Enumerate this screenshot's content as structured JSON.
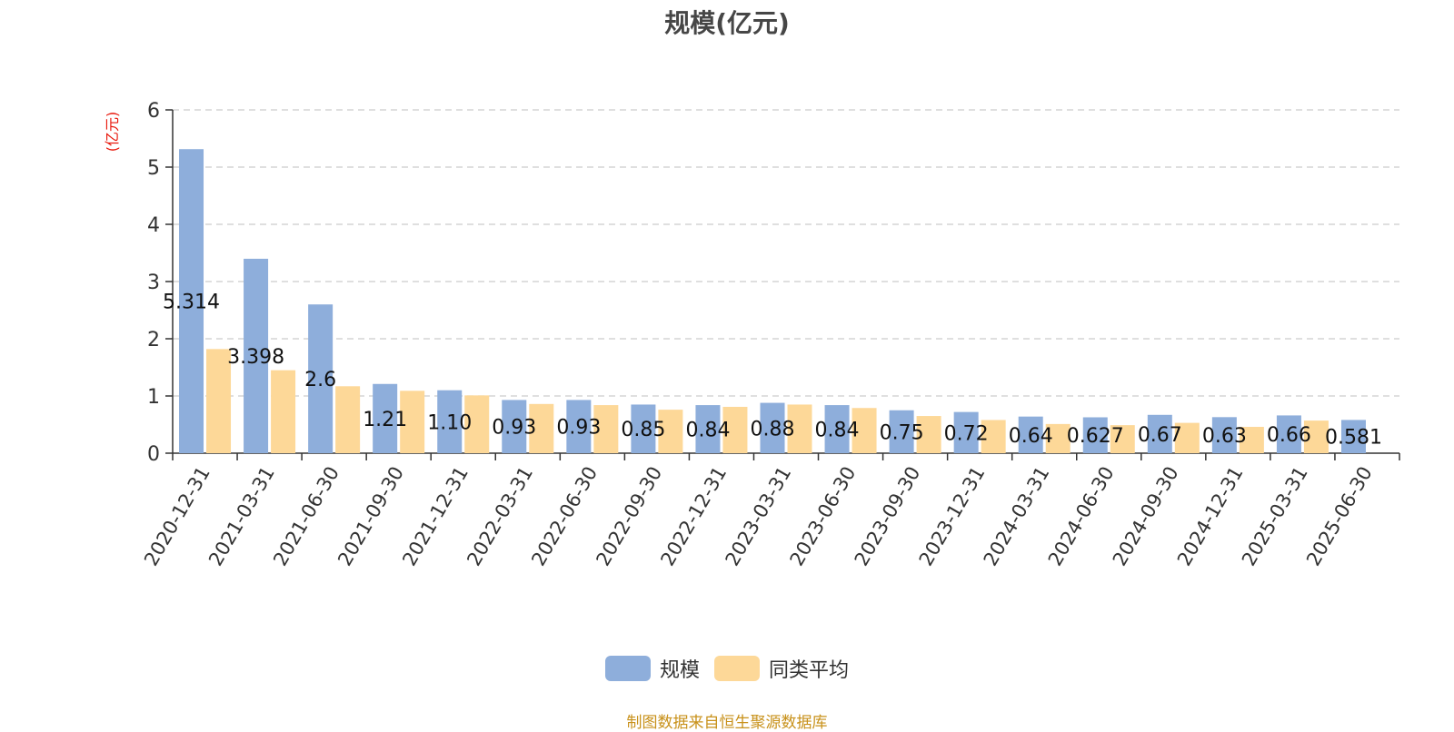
{
  "chart_data": {
    "type": "bar",
    "title": "规模(亿元)",
    "ylabel": "(亿元)",
    "xlabel": "",
    "ylim": [
      0,
      6
    ],
    "yticks": [
      0,
      1,
      2,
      3,
      4,
      5,
      6
    ],
    "grid": true,
    "legend_position": "bottom-center",
    "categories": [
      "2020-12-31",
      "2021-03-31",
      "2021-06-30",
      "2021-09-30",
      "2021-12-31",
      "2022-03-31",
      "2022-06-30",
      "2022-09-30",
      "2022-12-31",
      "2023-03-31",
      "2023-06-30",
      "2023-09-30",
      "2023-12-31",
      "2024-03-31",
      "2024-06-30",
      "2024-09-30",
      "2024-12-31",
      "2025-03-31",
      "2025-06-30"
    ],
    "series": [
      {
        "name": "规模",
        "color": "#8eaedb",
        "values": [
          5.314,
          3.398,
          2.6,
          1.21,
          1.1,
          0.93,
          0.93,
          0.85,
          0.84,
          0.88,
          0.84,
          0.75,
          0.72,
          0.64,
          0.627,
          0.67,
          0.63,
          0.66,
          0.581
        ],
        "labels": [
          "5.314",
          "3.398",
          "2.6",
          "1.21",
          "1.10",
          "0.93",
          "0.93",
          "0.85",
          "0.84",
          "0.88",
          "0.84",
          "0.75",
          "0.72",
          "0.64",
          "0.627",
          "0.67",
          "0.63",
          "0.66",
          "0.581"
        ]
      },
      {
        "name": "同类平均",
        "color": "#fdd898",
        "values": [
          1.82,
          1.45,
          1.17,
          1.09,
          1.01,
          0.86,
          0.84,
          0.76,
          0.81,
          0.85,
          0.79,
          0.65,
          0.58,
          0.51,
          0.49,
          0.53,
          0.46,
          0.57,
          null
        ]
      }
    ]
  },
  "footer": {
    "source": "制图数据来自恒生聚源数据库"
  }
}
